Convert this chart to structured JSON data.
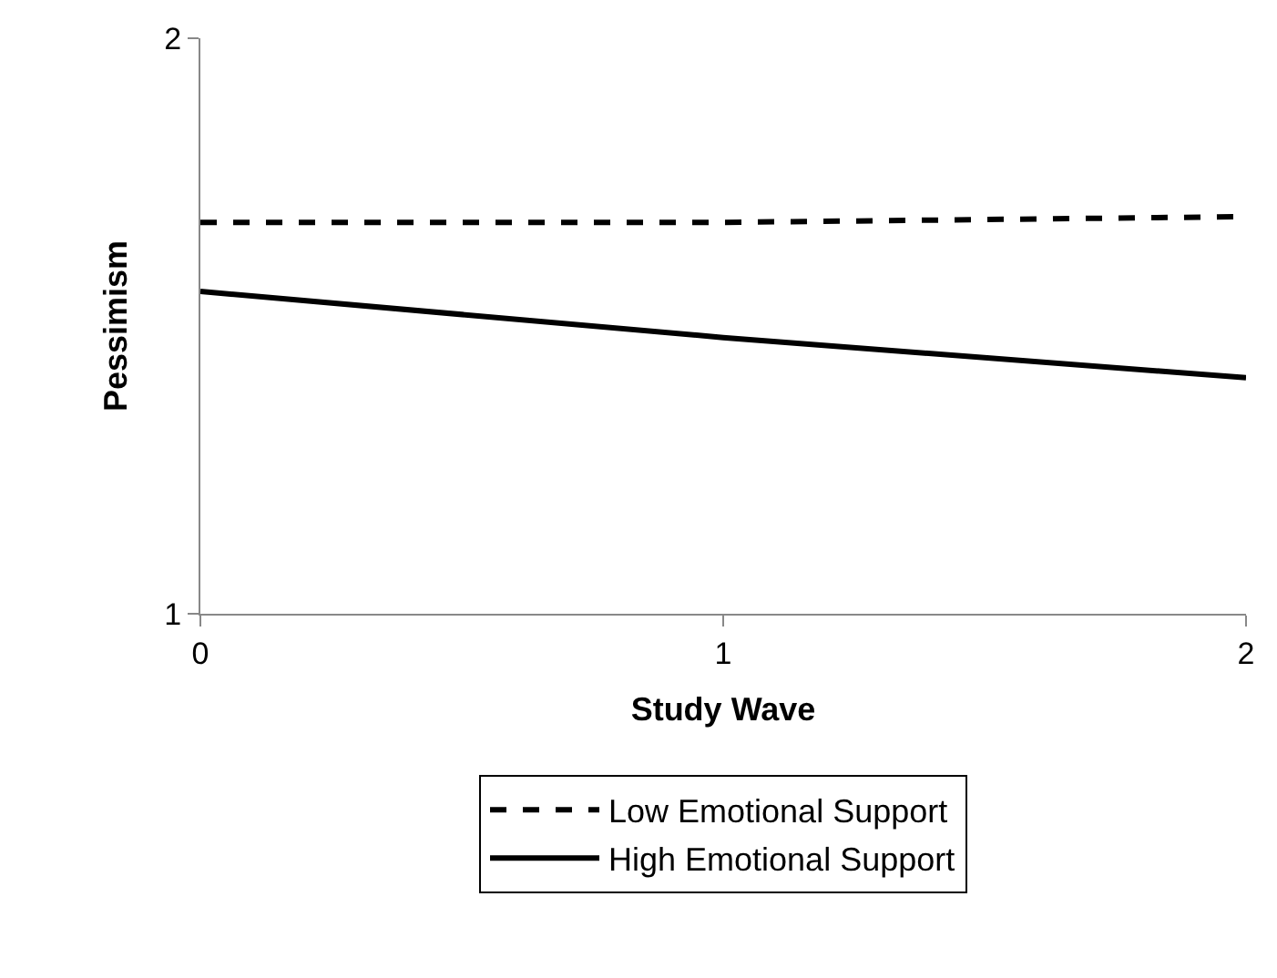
{
  "chart_data": {
    "type": "line",
    "xlabel": "Study Wave",
    "ylabel": "Pessimism",
    "x": [
      0,
      1,
      2
    ],
    "xlim": [
      0,
      2
    ],
    "xticks": [
      0,
      1,
      2
    ],
    "ylim": [
      1,
      2
    ],
    "yticks": [
      1,
      2
    ],
    "series": [
      {
        "name": "Low Emotional Support",
        "color": "#000000",
        "line_style": "dashed",
        "values": [
          1.68,
          1.68,
          1.69
        ]
      },
      {
        "name": "High Emotional Support",
        "color": "#000000",
        "line_style": "solid",
        "values": [
          1.56,
          1.48,
          1.41
        ]
      }
    ],
    "legend": "bottom",
    "marker": "none"
  }
}
